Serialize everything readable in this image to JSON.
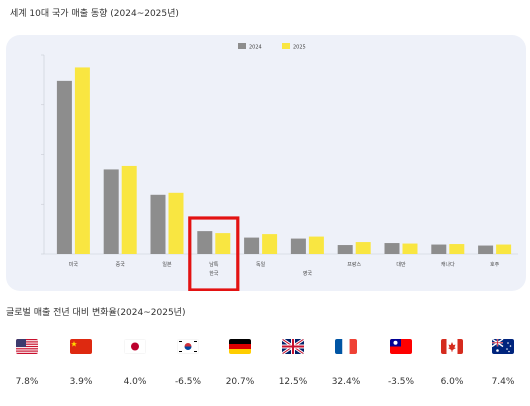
{
  "header": {
    "title": "세계 10대 국가 매출 동향 (2024~2025년)"
  },
  "chart_data": {
    "type": "bar",
    "categories": [
      "미국",
      "중국",
      "일본",
      "남특\n한국",
      "독일",
      "",
      "프랑스",
      "대만",
      "캐나다",
      "호주"
    ],
    "category_sublabels": [
      "",
      "",
      "",
      "",
      "",
      "영국",
      "",
      "",
      "",
      ""
    ],
    "ytick_labels": [
      "",
      "",
      "",
      "",
      ""
    ],
    "ylim": [
      0,
      400
    ],
    "ytick_values": [
      0,
      100,
      200,
      300,
      400
    ],
    "series": [
      {
        "name": "2024",
        "color": "#8d8d8d",
        "values": [
          348,
          170,
          119,
          46,
          33,
          31,
          18,
          22,
          19,
          17
        ]
      },
      {
        "name": "2025",
        "color": "#f9e641",
        "values": [
          375,
          177,
          123,
          42,
          40,
          35,
          24,
          21,
          20,
          19
        ]
      }
    ],
    "legend_position": "top-center",
    "highlight_index": 3,
    "highlight_color": "#e31212",
    "grid": false
  },
  "change_section": {
    "title": "글로벌 매출 전년 대비 변화율(2024~2025년)",
    "countries": [
      {
        "flag": "us-flag",
        "value": "7.8%"
      },
      {
        "flag": "cn-flag",
        "value": "3.9%"
      },
      {
        "flag": "jp-flag",
        "value": "4.0%"
      },
      {
        "flag": "kr-flag",
        "value": "-6.5%"
      },
      {
        "flag": "de-flag",
        "value": "20.7%"
      },
      {
        "flag": "gb-flag",
        "value": "12.5%"
      },
      {
        "flag": "fr-flag",
        "value": "32.4%"
      },
      {
        "flag": "tw-flag",
        "value": "-3.5%"
      },
      {
        "flag": "ca-flag",
        "value": "6.0%"
      },
      {
        "flag": "au-flag",
        "value": "7.4%"
      }
    ]
  }
}
